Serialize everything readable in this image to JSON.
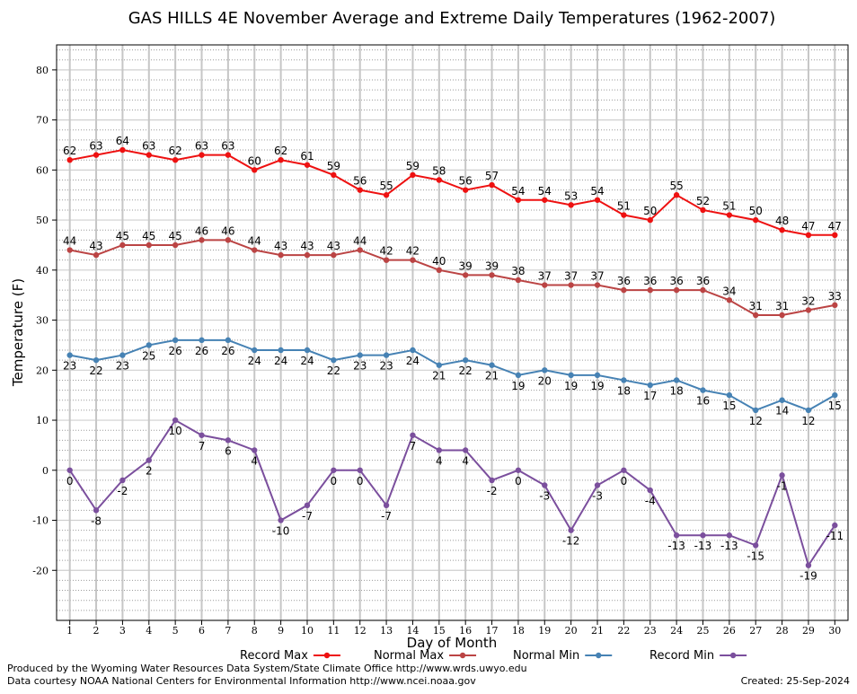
{
  "chart_data": {
    "type": "line",
    "title": "GAS HILLS 4E November Average and Extreme Daily Temperatures (1962-2007)",
    "xlabel": "Day of Month",
    "ylabel": "Temperature (F)",
    "ylim": [
      -30,
      85
    ],
    "xlim": [
      0.5,
      30.5
    ],
    "yticks": [
      -20,
      -10,
      0,
      10,
      20,
      30,
      40,
      50,
      60,
      70,
      80
    ],
    "x": [
      1,
      2,
      3,
      4,
      5,
      6,
      7,
      8,
      9,
      10,
      11,
      12,
      13,
      14,
      15,
      16,
      17,
      18,
      19,
      20,
      21,
      22,
      23,
      24,
      25,
      26,
      27,
      28,
      29,
      30
    ],
    "grid": true,
    "legend_placement": "bottom",
    "series": [
      {
        "name": "Record Max",
        "color": "#ee1111",
        "values": [
          62,
          63,
          64,
          63,
          62,
          63,
          63,
          60,
          62,
          61,
          59,
          56,
          55,
          59,
          58,
          56,
          57,
          54,
          54,
          53,
          54,
          51,
          50,
          55,
          52,
          51,
          50,
          48,
          47,
          47
        ]
      },
      {
        "name": "Normal Max",
        "color": "#bb4444",
        "values": [
          44,
          43,
          45,
          45,
          45,
          46,
          46,
          44,
          43,
          43,
          43,
          44,
          42,
          42,
          40,
          39,
          39,
          38,
          37,
          37,
          37,
          36,
          36,
          36,
          36,
          34,
          31,
          31,
          32,
          33
        ]
      },
      {
        "name": "Normal Min",
        "color": "#4682b4",
        "values": [
          23,
          22,
          23,
          25,
          26,
          26,
          26,
          24,
          24,
          24,
          22,
          23,
          23,
          24,
          21,
          22,
          21,
          19,
          20,
          19,
          19,
          18,
          17,
          18,
          16,
          15,
          12,
          14,
          12,
          15
        ]
      },
      {
        "name": "Record Min",
        "color": "#7b4f9d",
        "values": [
          0,
          -8,
          -2,
          2,
          10,
          7,
          6,
          4,
          -10,
          -7,
          0,
          0,
          -7,
          7,
          4,
          4,
          -2,
          0,
          -3,
          -12,
          -3,
          0,
          -4,
          -13,
          -13,
          -13,
          -15,
          -1,
          -19,
          -11
        ]
      }
    ]
  },
  "footer": {
    "produced_by": "Produced by the Wyoming Water Resources Data System/State Climate Office http://www.wrds.uwyo.edu",
    "data_courtesy": "Data courtesy NOAA National Centers for Environmental Information http://www.ncei.noaa.gov",
    "created": "Created:  25-Sep-2024"
  }
}
